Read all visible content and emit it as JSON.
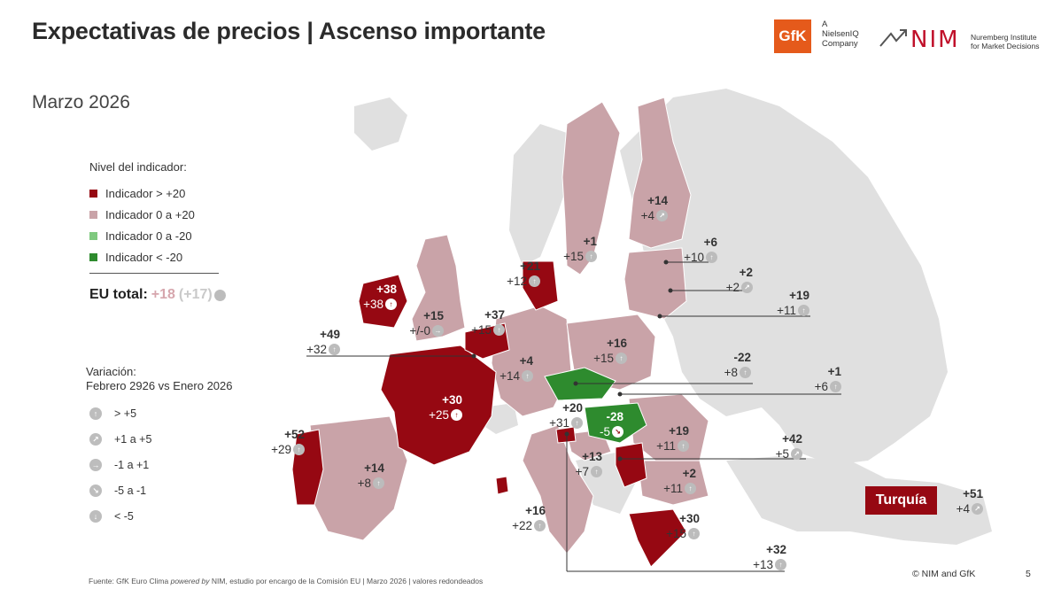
{
  "header": {
    "title": "Expectativas de precios | Ascenso importante",
    "subtitle": "Marzo 2026",
    "gfk_logo": "GfK",
    "gfk_sub": [
      "A",
      "NielsenIQ",
      "Company"
    ],
    "nim_logo": "NIM",
    "nim_sub": [
      "Nuremberg Institute",
      "for Market Decisions"
    ]
  },
  "legend": {
    "title": "Nivel del indicador:",
    "items": [
      {
        "label": "Indicador > +20",
        "color": "#960812"
      },
      {
        "label": "Indicador 0 a +20",
        "color": "#c9a3a8"
      },
      {
        "label": "Indicador 0 a -20",
        "color": "#7fc97f"
      },
      {
        "label": "Indicador < -20",
        "color": "#2e8b2e"
      }
    ],
    "eu_total_label": "EU total:",
    "eu_total_value": "+18",
    "eu_total_prev": "(+17)"
  },
  "variation": {
    "title_line1": "Variación:",
    "title_line2": "Febrero 2926 vs Enero 2026",
    "items": [
      {
        "label": "> +5",
        "icon": "arrow-up-icon"
      },
      {
        "label": "+1 a +5",
        "icon": "arrow-up-right-icon"
      },
      {
        "label": "-1 a +1",
        "icon": "arrow-right-icon"
      },
      {
        "label": "-5 a -1",
        "icon": "arrow-down-right-icon"
      },
      {
        "label": "< -5",
        "icon": "arrow-down-icon"
      }
    ]
  },
  "countries": {
    "ireland": {
      "level": "+38",
      "change": "+38"
    },
    "uk": {
      "level": "+15",
      "change": "+/-0"
    },
    "france": {
      "level": "+30",
      "change": "+25"
    },
    "luxembourg": {
      "level": "+49",
      "change": "+32"
    },
    "belgium": {
      "level": "+37",
      "change": "+15"
    },
    "germany": {
      "level": "+4",
      "change": "+14"
    },
    "denmark": {
      "level": "+21",
      "change": "+12"
    },
    "sweden": {
      "level": "+1",
      "change": "+15"
    },
    "finland": {
      "level": "+14",
      "change": "+4"
    },
    "estonia": {
      "level": "+6",
      "change": "+10"
    },
    "latvia": {
      "level": "+2",
      "change": "+2"
    },
    "lithuania": {
      "level": "+19",
      "change": "+11"
    },
    "poland": {
      "level": "+16",
      "change": "+15"
    },
    "czechia": {
      "level": "-22",
      "change": "+8"
    },
    "slovakia": {
      "level": "+1",
      "change": "+6"
    },
    "austria": {
      "level": "+20",
      "change": "+31"
    },
    "hungary": {
      "level": "-28",
      "change": "-5"
    },
    "romania": {
      "level": "+19",
      "change": "+11"
    },
    "moldova": {
      "level": "+42",
      "change": "+5"
    },
    "bulgaria": {
      "level": "+2",
      "change": "+11"
    },
    "slovenia": {
      "level": "+13",
      "change": "+7"
    },
    "portugal": {
      "level": "+52",
      "change": "+29"
    },
    "spain": {
      "level": "+14",
      "change": "+8"
    },
    "italy": {
      "level": "+16",
      "change": "+22"
    },
    "greece": {
      "level": "+30",
      "change": "+15"
    },
    "cyprus": {
      "level": "+32",
      "change": "+13"
    },
    "turkey": {
      "name": "Turquía",
      "level": "+51",
      "change": "+4"
    }
  },
  "colors": {
    "high": "#960812",
    "mid": "#c9a3a8",
    "low_pos": "#7fc97f",
    "low_neg": "#2e8b2e",
    "other": "#e0e0e0"
  },
  "footer": {
    "source_pre": "Fuente: GfK Euro Clima ",
    "source_em": "powered by",
    "source_post": " NIM, estudio por encargo de la Comisión EU | Marzo 2026 | valores redondeados",
    "copyright": "© NIM and GfK",
    "page": "5"
  }
}
